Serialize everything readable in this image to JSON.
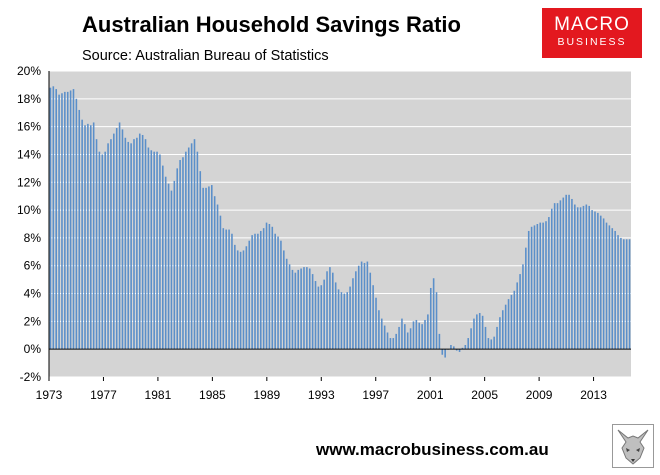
{
  "title": "Australian Household Savings Ratio",
  "subtitle": "Source: Australian Bureau of Statistics",
  "logo": {
    "line1": "MACRO",
    "line2": "BUSINESS"
  },
  "footer": "www.macrobusiness.com.au",
  "colors": {
    "bar": "#5b8fc9",
    "plot_bg": "#d4d4d4",
    "logo_bg": "#e3181f"
  },
  "icons": {
    "footer_logo": "fox-head-icon"
  },
  "chart_data": {
    "type": "bar",
    "title": "Australian Household Savings Ratio",
    "subtitle": "Source: Australian Bureau of Statistics",
    "xlabel": "",
    "ylabel": "",
    "ylim": [
      -2,
      20
    ],
    "yticks": [
      "-2%",
      "0%",
      "2%",
      "4%",
      "6%",
      "8%",
      "10%",
      "12%",
      "14%",
      "16%",
      "18%",
      "20%"
    ],
    "ytick_values": [
      -2,
      0,
      2,
      4,
      6,
      8,
      10,
      12,
      14,
      16,
      18,
      20
    ],
    "xticks": [
      "1973",
      "1977",
      "1981",
      "1985",
      "1989",
      "1993",
      "1997",
      "2001",
      "2005",
      "2009",
      "2013"
    ],
    "xtick_values": [
      1973,
      1977,
      1981,
      1985,
      1989,
      1993,
      1997,
      2001,
      2005,
      2009,
      2013
    ],
    "x_start": 1973.0,
    "x_end": 2015.75,
    "frequency": "quarterly",
    "grid": true,
    "legend": "none",
    "series": [
      {
        "values": [
          18.8,
          18.9,
          18.7,
          18.3,
          18.4,
          18.5,
          18.5,
          18.6,
          18.7,
          18.0,
          17.2,
          16.5,
          16.1,
          16.2,
          16.1,
          16.3,
          15.1,
          14.2,
          14.0,
          14.2,
          14.8,
          15.1,
          15.5,
          15.9,
          16.3,
          15.8,
          15.2,
          14.9,
          14.8,
          15.1,
          15.2,
          15.5,
          15.4,
          15.1,
          14.5,
          14.3,
          14.2,
          14.2,
          14.0,
          13.2,
          12.4,
          11.9,
          11.4,
          12.1,
          13.0,
          13.6,
          13.8,
          14.2,
          14.5,
          14.8,
          15.1,
          14.2,
          12.8,
          11.6,
          11.6,
          11.7,
          11.8,
          11.0,
          10.4,
          9.6,
          8.7,
          8.6,
          8.6,
          8.3,
          7.5,
          7.1,
          7.0,
          7.1,
          7.4,
          7.8,
          8.2,
          8.3,
          8.3,
          8.5,
          8.7,
          9.1,
          9.0,
          8.8,
          8.3,
          8.1,
          7.8,
          7.1,
          6.5,
          6.1,
          5.7,
          5.5,
          5.7,
          5.8,
          5.9,
          5.9,
          5.8,
          5.4,
          4.9,
          4.5,
          4.6,
          5.0,
          5.6,
          5.9,
          5.5,
          4.8,
          4.3,
          4.1,
          4.0,
          4.1,
          4.5,
          5.1,
          5.6,
          6.0,
          6.3,
          6.2,
          6.3,
          5.5,
          4.6,
          3.7,
          2.8,
          2.2,
          1.7,
          1.2,
          0.8,
          0.8,
          1.1,
          1.6,
          2.2,
          1.8,
          1.2,
          1.5,
          2.0,
          2.1,
          1.9,
          1.8,
          2.1,
          2.5,
          4.4,
          5.1,
          4.1,
          1.1,
          -0.4,
          -0.6,
          0.0,
          0.3,
          0.2,
          -0.1,
          -0.2,
          0.1,
          0.3,
          0.8,
          1.5,
          2.2,
          2.5,
          2.6,
          2.4,
          1.6,
          0.8,
          0.7,
          0.9,
          1.6,
          2.3,
          2.8,
          3.2,
          3.6,
          3.9,
          4.2,
          4.8,
          5.4,
          6.1,
          7.3,
          8.5,
          8.8,
          8.9,
          9.0,
          9.1,
          9.1,
          9.2,
          9.5,
          10.1,
          10.5,
          10.5,
          10.7,
          10.9,
          11.1,
          11.1,
          10.8,
          10.4,
          10.2,
          10.2,
          10.3,
          10.4,
          10.3,
          10.0,
          9.9,
          9.8,
          9.6,
          9.4,
          9.1,
          8.9,
          8.7,
          8.5,
          8.2,
          8.0,
          7.9,
          7.9,
          7.9
        ]
      }
    ]
  }
}
